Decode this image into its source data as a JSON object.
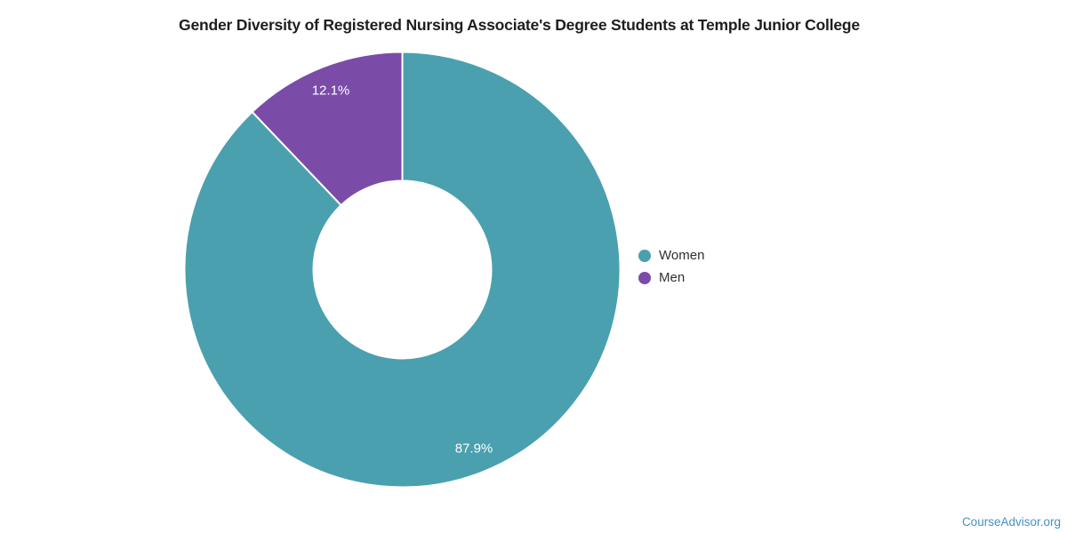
{
  "chart": {
    "title": "Gender Diversity of Registered Nursing Associate's Degree Students at Temple Junior College"
  },
  "chart_data": {
    "type": "pie",
    "subtype": "donut",
    "title": "Gender Diversity of Registered Nursing Associate's Degree Students at Temple Junior College",
    "labels": [
      "Women",
      "Men"
    ],
    "values": [
      87.9,
      12.1
    ],
    "value_labels": [
      "87.9%",
      "12.1%"
    ],
    "colors": [
      "#4AA0AF",
      "#7A4CA8"
    ],
    "slice_border_color": "#ffffff",
    "start_angle_deg": 0,
    "direction": "clockwise",
    "legend_position": "right",
    "background_color": "#ffffff"
  },
  "source": {
    "label": "CourseAdvisor.org",
    "color": "#4491c2"
  }
}
